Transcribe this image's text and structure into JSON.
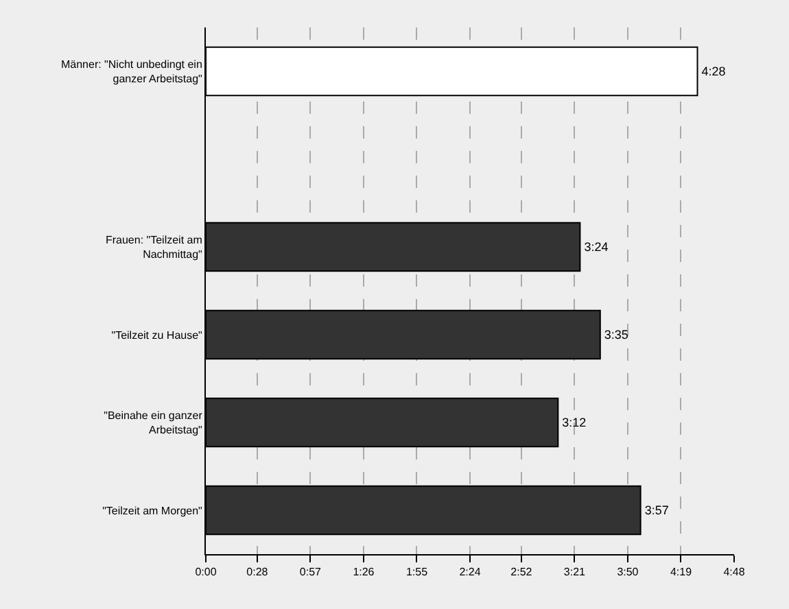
{
  "chart_data": {
    "type": "bar",
    "orientation": "horizontal",
    "categories": [
      "Männer: \"Nicht unbedingt ein\nganzer Arbeitstag\"",
      null,
      "Frauen: \"Teilzeit am\nNachmittag\"",
      "\"Teilzeit zu Hause\"",
      "\"Beinahe ein ganzer\nArbeitstag\"",
      "\"Teilzeit am Morgen\""
    ],
    "values": [
      268,
      null,
      204,
      215,
      192,
      237
    ],
    "value_labels": [
      "4:28",
      null,
      "3:24",
      "3:35",
      "3:12",
      "3:57"
    ],
    "colors": [
      "#ffffff",
      null,
      "#333333",
      "#333333",
      "#333333",
      "#333333"
    ],
    "xlim": [
      0,
      288
    ],
    "xticks": [
      {
        "value": 0,
        "label": "0:00"
      },
      {
        "value": 28,
        "label": "0:28"
      },
      {
        "value": 57,
        "label": "0:57"
      },
      {
        "value": 86,
        "label": "1:26"
      },
      {
        "value": 115,
        "label": "1:55"
      },
      {
        "value": 144,
        "label": "2:24"
      },
      {
        "value": 172,
        "label": "2:52"
      },
      {
        "value": 201,
        "label": "3:21"
      },
      {
        "value": 230,
        "label": "3:50"
      },
      {
        "value": 259,
        "label": "4:19"
      },
      {
        "value": 288,
        "label": "4:48"
      }
    ],
    "grid": "x"
  }
}
